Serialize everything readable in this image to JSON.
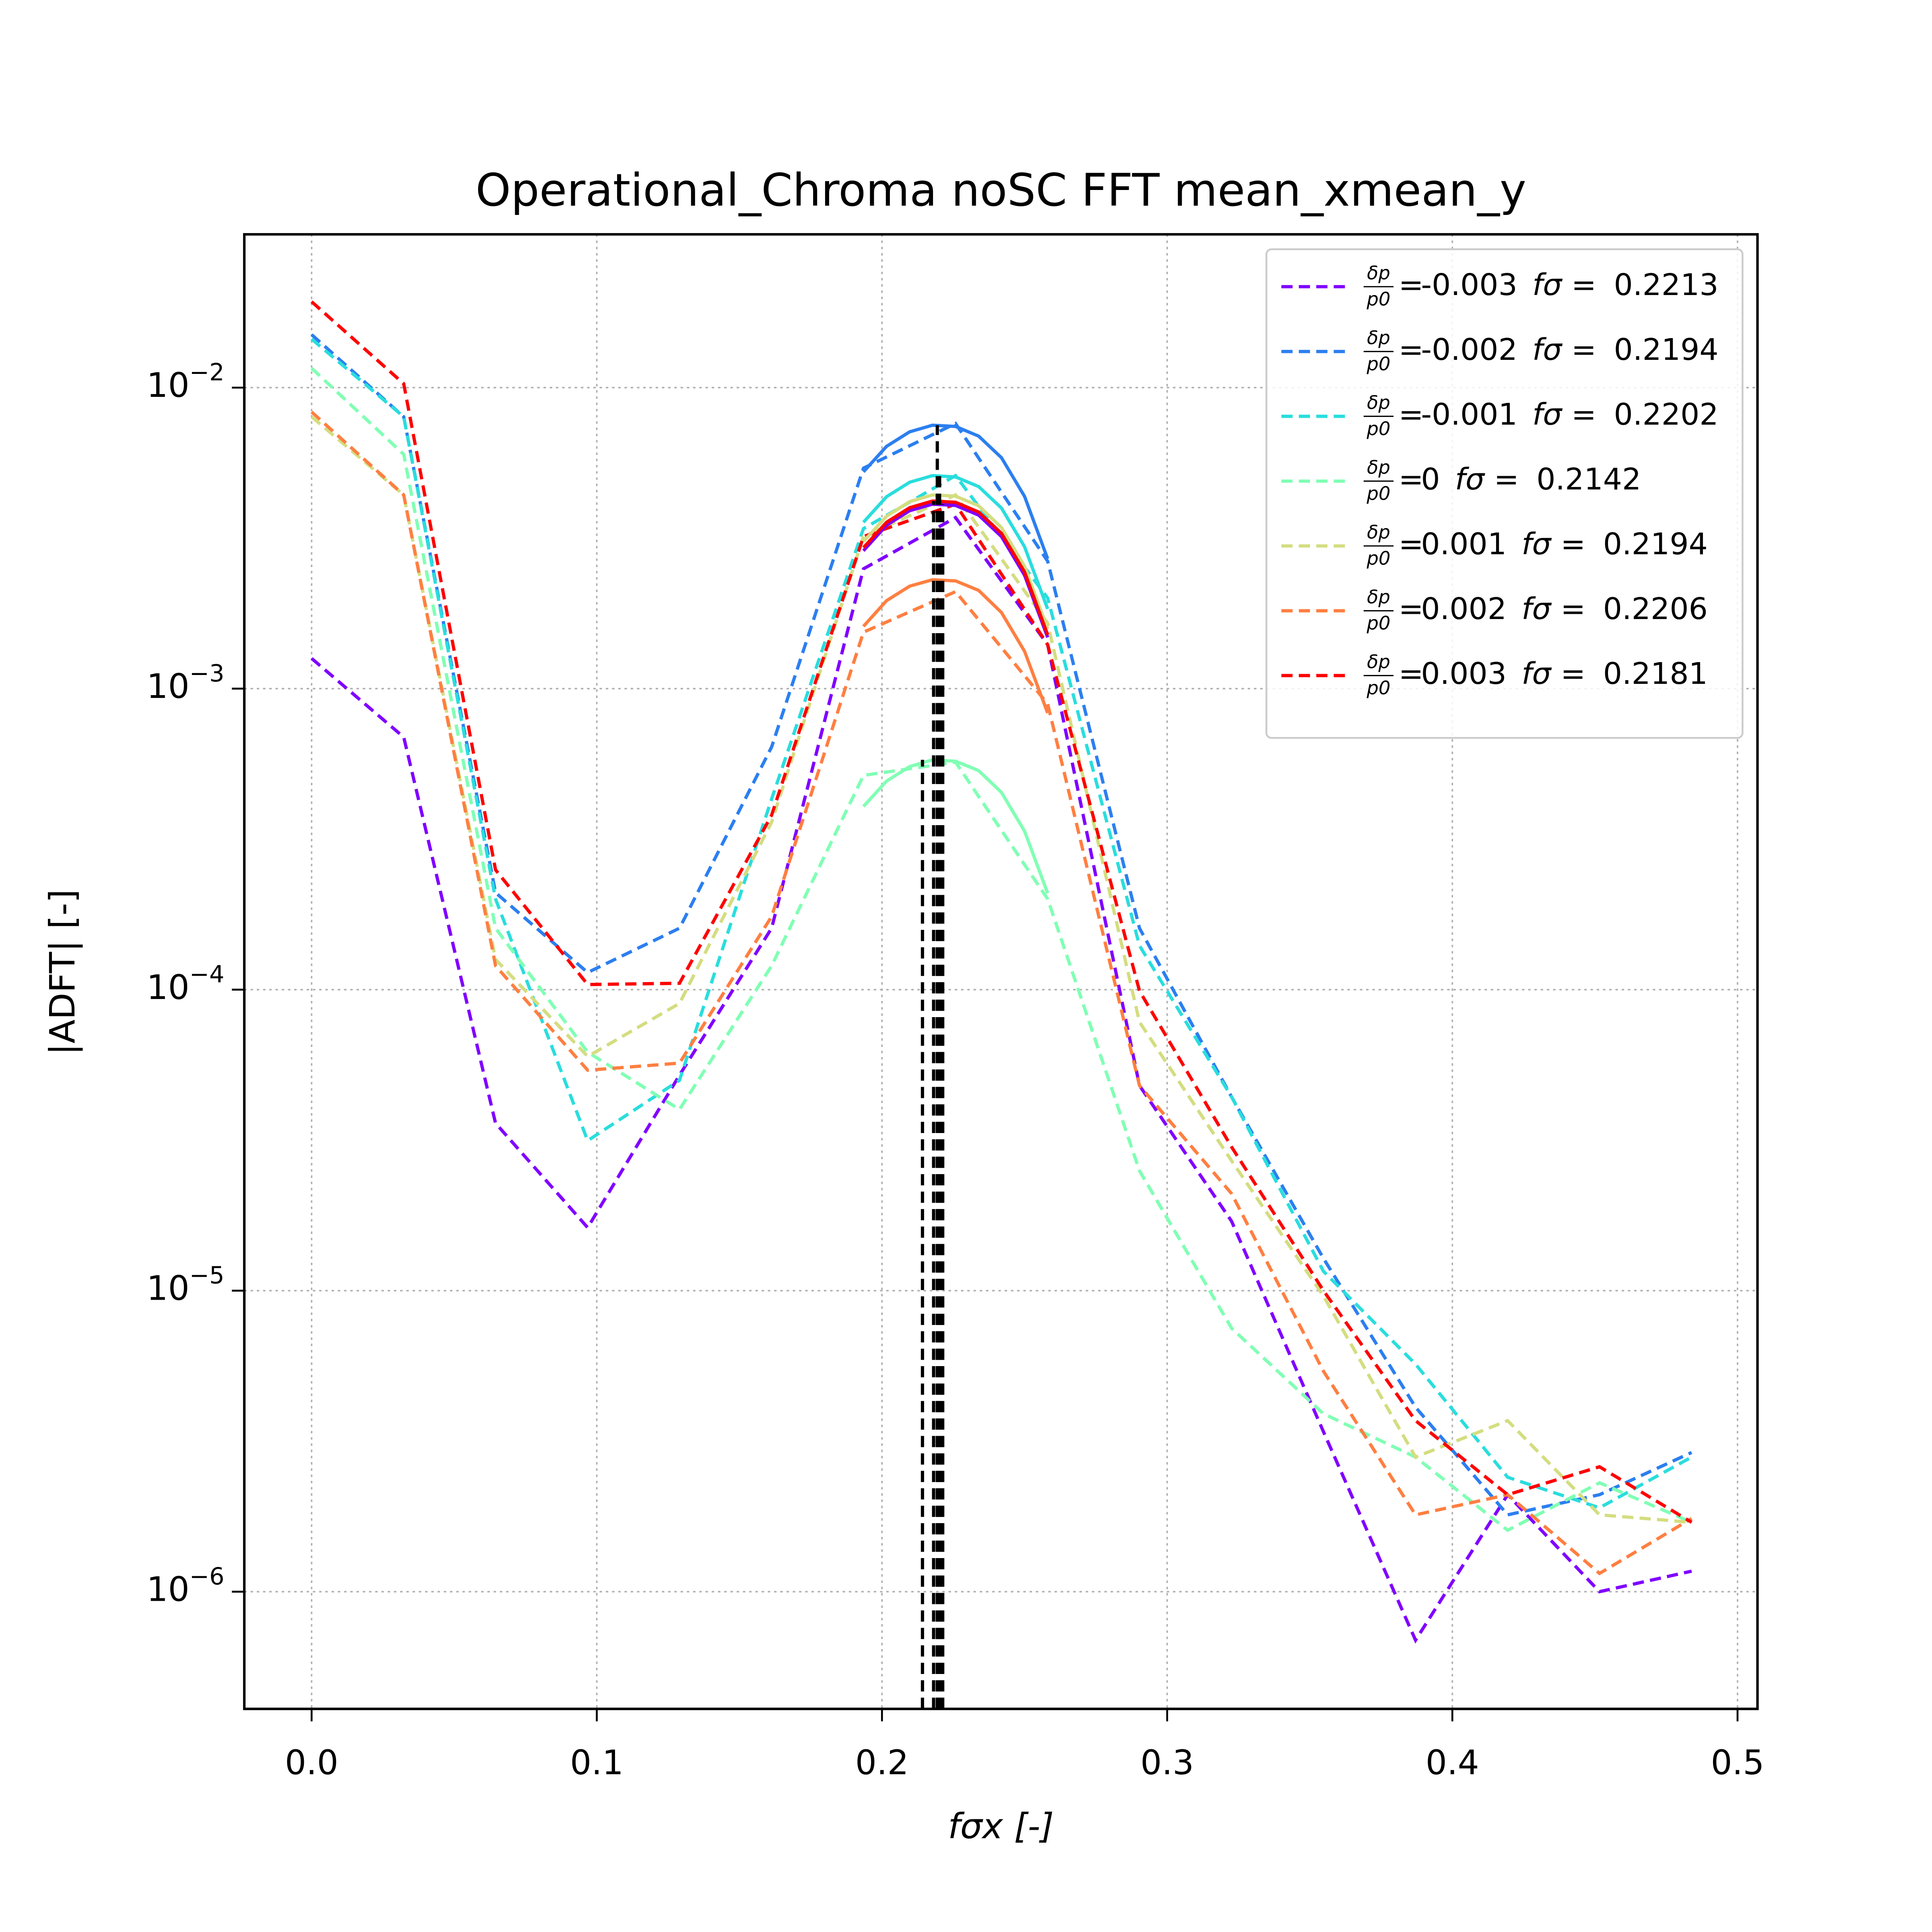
{
  "chart_data": {
    "type": "line",
    "title": "Operational_Chroma noSC FFT mean_xmean_y",
    "xlabel": "fσx [-]",
    "ylabel": "|ADFT| [-]",
    "log_y": true,
    "grid": true,
    "legend_loc": "upper right",
    "legend_text": {
      "numerator": "δp",
      "denominator": "p0",
      "equals": "=",
      "f_label": "fσ ="
    },
    "xlim": [
      -0.0236,
      0.507
    ],
    "ylim": [
      4.08e-07,
      0.0323
    ],
    "xticks": [
      {
        "value": 0,
        "label": "0.0"
      },
      0.1,
      0.2,
      0.3,
      0.4,
      0.5
    ],
    "yticks": [
      {
        "value": 1e-06,
        "label": "10^−6"
      },
      {
        "value": 1e-05,
        "label": "10^−5"
      },
      {
        "value": 0.0001,
        "label": "10^−4"
      },
      {
        "value": 0.001,
        "label": "10^−3"
      },
      {
        "value": 0.01,
        "label": "10^−2"
      }
    ],
    "x": [
      0,
      0.0323,
      0.0645,
      0.0968,
      0.129,
      0.1613,
      0.1935,
      0.2258,
      0.2581,
      0.2903,
      0.3226,
      0.3548,
      0.3871,
      0.4194,
      0.4516,
      0.4839
    ],
    "fit_x": [
      0.1935,
      0.2016,
      0.2097,
      0.2177,
      0.2258,
      0.2339,
      0.2419,
      0.25,
      0.2581
    ],
    "series": [
      {
        "name": "-0.003",
        "f_sigma": 0.2213,
        "color": "#8000ff",
        "values": [
          0.00126,
          0.00069,
          3.6e-05,
          1.62e-05,
          5.2e-05,
          0.00016,
          0.0025,
          0.0037,
          0.0014,
          4.8e-05,
          1.7e-05,
          3.4e-06,
          6.9e-07,
          2.1e-06,
          1e-06,
          1.17e-06
        ],
        "fit_values": [
          0.00287,
          0.00349,
          0.0039,
          0.0041,
          0.00406,
          0.00377,
          0.0032,
          0.00238,
          0.00148
        ]
      },
      {
        "name": "-0.002",
        "f_sigma": 0.2194,
        "color": "#2c7ff0",
        "values": [
          0.015,
          0.008,
          0.00021,
          0.000114,
          0.00016,
          0.00064,
          0.0054,
          0.0076,
          0.00265,
          0.00016,
          4.4e-05,
          1.28e-05,
          4.1e-06,
          1.8e-06,
          2.1e-06,
          2.9e-06
        ],
        "fit_values": [
          0.00525,
          0.00638,
          0.00713,
          0.0075,
          0.00743,
          0.0069,
          0.00585,
          0.00435,
          0.0027
        ]
      },
      {
        "name": "-0.001",
        "f_sigma": 0.2202,
        "color": "#2adddd",
        "values": [
          0.0145,
          0.008,
          0.0002,
          3.15e-05,
          5e-05,
          0.00043,
          0.0034,
          0.0051,
          0.002,
          0.00014,
          4.4e-05,
          1.16e-05,
          5.7e-06,
          2.4e-06,
          1.9e-06,
          2.8e-06
        ],
        "fit_values": [
          0.00357,
          0.00434,
          0.00485,
          0.0051,
          0.00505,
          0.00469,
          0.00398,
          0.00296,
          0.00184
        ]
      },
      {
        "name": "0",
        "f_sigma": 0.2142,
        "color": "#80ffb4",
        "values": [
          0.0116,
          0.006,
          0.00016,
          6.2e-05,
          4e-05,
          0.00012,
          0.000515,
          0.00057,
          0.0002,
          2.5e-05,
          7.5e-06,
          3.9e-06,
          2.8e-06,
          1.6e-06,
          2.3e-06,
          1.7e-06
        ],
        "fit_values": [
          0.000406,
          0.000493,
          0.000551,
          0.00058,
          0.000574,
          0.000534,
          0.000452,
          0.000336,
          0.000209
        ]
      },
      {
        "name": "0.001",
        "f_sigma": 0.2194,
        "color": "#d4dd80",
        "values": [
          0.008,
          0.0044,
          0.000126,
          6e-05,
          9e-05,
          0.00036,
          0.0032,
          0.0044,
          0.00165,
          7.8e-05,
          2.7e-05,
          9.6e-06,
          2.8e-06,
          3.7e-06,
          1.8e-06,
          1.7e-06
        ],
        "fit_values": [
          0.00308,
          0.00374,
          0.00418,
          0.0044,
          0.00436,
          0.00405,
          0.00343,
          0.00255,
          0.00158
        ]
      },
      {
        "name": "0.002",
        "f_sigma": 0.2206,
        "color": "#ff7f41",
        "values": [
          0.0083,
          0.0044,
          0.00012,
          5.4e-05,
          5.7e-05,
          0.000175,
          0.00154,
          0.0021,
          0.00089,
          4.8e-05,
          2.1e-05,
          5.4e-06,
          1.8e-06,
          2.1e-06,
          1.15e-06,
          1.75e-06
        ],
        "fit_values": [
          0.00161,
          0.00196,
          0.00219,
          0.0023,
          0.00228,
          0.00212,
          0.00179,
          0.00133,
          0.00083
        ]
      },
      {
        "name": "0.003",
        "f_sigma": 0.2181,
        "color": "#ff0000",
        "values": [
          0.0193,
          0.0103,
          0.00025,
          0.000104,
          0.000105,
          0.00038,
          0.0032,
          0.0041,
          0.0014,
          9.9e-05,
          3e-05,
          1e-05,
          3.7e-06,
          2.1e-06,
          2.6e-06,
          1.7e-06
        ],
        "fit_values": [
          0.00294,
          0.00357,
          0.00399,
          0.0042,
          0.00416,
          0.00386,
          0.00328,
          0.00244,
          0.00151
        ]
      }
    ]
  }
}
